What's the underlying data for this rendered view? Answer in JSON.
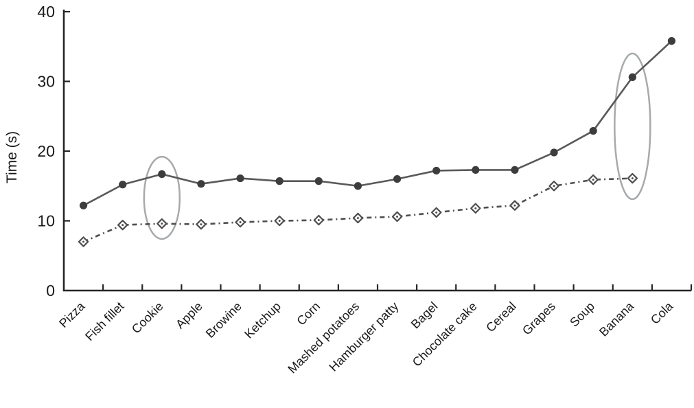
{
  "figure": {
    "background": "#ffffff",
    "axis_color": "#262626",
    "text_color": "#1a1a1a"
  },
  "chart_data": {
    "type": "line",
    "title": "",
    "xlabel": "",
    "ylabel": "Time (s)",
    "ylim": [
      0,
      40
    ],
    "yticks": [
      0,
      10,
      20,
      30,
      40
    ],
    "ytick_labels": [
      "0",
      "10",
      "20",
      "30",
      "40"
    ],
    "grid": false,
    "legend_position": "none",
    "x_label_rotation_deg": -45,
    "categories": [
      "Pizza",
      "Fish fillet",
      "Cookie",
      "Apple",
      "Browine",
      "Ketchup",
      "Corn",
      "Mashed potatoes",
      "Hamburger patty",
      "Bagel",
      "Chocolate cake",
      "Cereal",
      "Grapes",
      "Soup",
      "Banana",
      "Cola"
    ],
    "series": [
      {
        "name": "solid-filled-circle-series",
        "marker": "filled-circle",
        "line_style": "solid",
        "line_color": "#595959",
        "marker_color": "#3d3d3d",
        "values": [
          12.2,
          15.2,
          16.7,
          15.3,
          16.1,
          15.7,
          15.7,
          15.0,
          16.0,
          17.2,
          17.3,
          17.3,
          19.8,
          22.9,
          30.6,
          35.8
        ]
      },
      {
        "name": "dashed-open-diamond-series",
        "marker": "open-diamond",
        "line_style": "dash-dot",
        "line_color": "#4e4e4e",
        "marker_color": "#4e4e4e",
        "values": [
          7.0,
          9.4,
          9.6,
          9.5,
          9.8,
          10.0,
          10.1,
          10.4,
          10.6,
          11.2,
          11.8,
          12.2,
          15.0,
          15.9,
          16.1,
          null
        ]
      }
    ],
    "annotations": [
      {
        "type": "ellipse",
        "category": "Cookie",
        "value_top": 19.2,
        "value_bottom": 7.4,
        "color": "#a6aaac"
      },
      {
        "type": "ellipse",
        "category": "Banana",
        "value_top": 34.0,
        "value_bottom": 13.1,
        "color": "#a6aaac"
      }
    ]
  }
}
